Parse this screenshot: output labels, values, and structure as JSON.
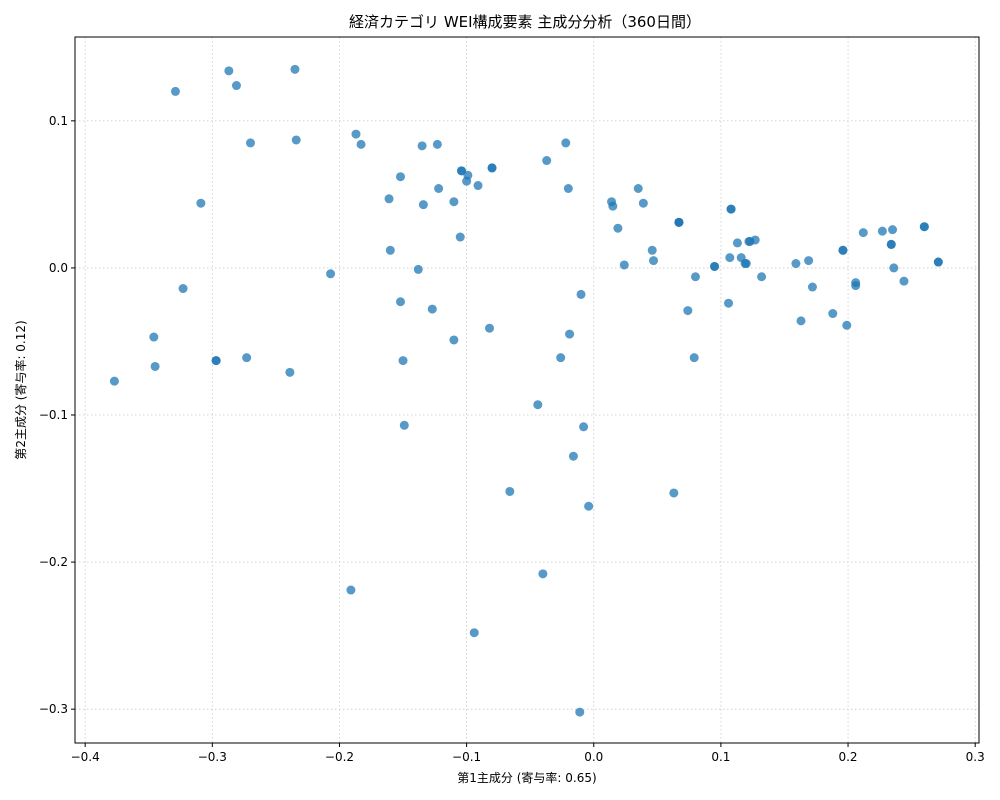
{
  "chart_data": {
    "type": "scatter",
    "title": "経済カテゴリ WEI構成要素 主成分分析（360日間）",
    "xlabel": "第1主成分 (寄与率: 0.65)",
    "ylabel": "第2主成分 (寄与率: 0.12)",
    "xlim": [
      -0.408,
      0.303
    ],
    "ylim": [
      -0.323,
      0.157
    ],
    "xticks": [
      -0.4,
      -0.3,
      -0.2,
      -0.1,
      0.0,
      0.1,
      0.2,
      0.3
    ],
    "xtick_labels": [
      "−0.4",
      "−0.3",
      "−0.2",
      "−0.1",
      "0.0",
      "0.1",
      "0.2",
      "0.3"
    ],
    "yticks": [
      -0.3,
      -0.2,
      -0.1,
      0.0,
      0.1
    ],
    "ytick_labels": [
      "−0.3",
      "−0.2",
      "−0.1",
      "0.0",
      "0.1"
    ],
    "grid": true,
    "point_color": "#1f77b4",
    "points": [
      [
        -0.377,
        -0.077
      ],
      [
        -0.346,
        -0.047
      ],
      [
        -0.345,
        -0.067
      ],
      [
        -0.329,
        0.12
      ],
      [
        -0.323,
        -0.014
      ],
      [
        -0.309,
        0.044
      ],
      [
        -0.297,
        -0.063
      ],
      [
        -0.297,
        -0.063
      ],
      [
        -0.287,
        0.134
      ],
      [
        -0.281,
        0.124
      ],
      [
        -0.273,
        -0.061
      ],
      [
        -0.27,
        0.085
      ],
      [
        -0.239,
        -0.071
      ],
      [
        -0.235,
        0.135
      ],
      [
        -0.234,
        0.087
      ],
      [
        -0.207,
        -0.004
      ],
      [
        -0.191,
        -0.219
      ],
      [
        -0.187,
        0.091
      ],
      [
        -0.183,
        0.084
      ],
      [
        -0.161,
        0.047
      ],
      [
        -0.16,
        0.012
      ],
      [
        -0.152,
        0.062
      ],
      [
        -0.152,
        -0.023
      ],
      [
        -0.15,
        -0.063
      ],
      [
        -0.149,
        -0.107
      ],
      [
        -0.138,
        -0.001
      ],
      [
        -0.135,
        0.083
      ],
      [
        -0.134,
        0.043
      ],
      [
        -0.127,
        -0.028
      ],
      [
        -0.123,
        0.084
      ],
      [
        -0.122,
        0.054
      ],
      [
        -0.11,
        0.045
      ],
      [
        -0.11,
        -0.049
      ],
      [
        -0.105,
        0.021
      ],
      [
        -0.104,
        0.066
      ],
      [
        -0.104,
        0.066
      ],
      [
        -0.1,
        0.059
      ],
      [
        -0.099,
        0.063
      ],
      [
        -0.094,
        -0.248
      ],
      [
        -0.091,
        0.056
      ],
      [
        -0.082,
        -0.041
      ],
      [
        -0.08,
        0.068
      ],
      [
        -0.08,
        0.068
      ],
      [
        -0.066,
        -0.152
      ],
      [
        -0.044,
        -0.093
      ],
      [
        -0.04,
        -0.208
      ],
      [
        -0.037,
        0.073
      ],
      [
        -0.026,
        -0.061
      ],
      [
        -0.022,
        0.085
      ],
      [
        -0.02,
        0.054
      ],
      [
        -0.019,
        -0.045
      ],
      [
        -0.016,
        -0.128
      ],
      [
        -0.011,
        -0.302
      ],
      [
        -0.01,
        -0.018
      ],
      [
        -0.008,
        -0.108
      ],
      [
        -0.004,
        -0.162
      ],
      [
        0.014,
        0.045
      ],
      [
        0.015,
        0.042
      ],
      [
        0.019,
        0.027
      ],
      [
        0.024,
        0.002
      ],
      [
        0.035,
        0.054
      ],
      [
        0.039,
        0.044
      ],
      [
        0.046,
        0.012
      ],
      [
        0.047,
        0.005
      ],
      [
        0.063,
        -0.153
      ],
      [
        0.067,
        0.031
      ],
      [
        0.067,
        0.031
      ],
      [
        0.067,
        0.031
      ],
      [
        0.074,
        -0.029
      ],
      [
        0.079,
        -0.061
      ],
      [
        0.08,
        -0.006
      ],
      [
        0.095,
        0.001
      ],
      [
        0.095,
        0.001
      ],
      [
        0.106,
        -0.024
      ],
      [
        0.107,
        0.007
      ],
      [
        0.108,
        0.04
      ],
      [
        0.108,
        0.04
      ],
      [
        0.113,
        0.017
      ],
      [
        0.116,
        0.007
      ],
      [
        0.119,
        0.003
      ],
      [
        0.12,
        0.003
      ],
      [
        0.122,
        0.018
      ],
      [
        0.123,
        0.018
      ],
      [
        0.127,
        0.019
      ],
      [
        0.132,
        -0.006
      ],
      [
        0.159,
        0.003
      ],
      [
        0.163,
        -0.036
      ],
      [
        0.169,
        0.005
      ],
      [
        0.172,
        -0.013
      ],
      [
        0.188,
        -0.031
      ],
      [
        0.196,
        0.012
      ],
      [
        0.196,
        0.012
      ],
      [
        0.199,
        -0.039
      ],
      [
        0.206,
        -0.01
      ],
      [
        0.206,
        -0.012
      ],
      [
        0.212,
        0.024
      ],
      [
        0.227,
        0.025
      ],
      [
        0.234,
        0.016
      ],
      [
        0.234,
        0.016
      ],
      [
        0.235,
        0.026
      ],
      [
        0.236,
        0.0
      ],
      [
        0.244,
        -0.009
      ],
      [
        0.26,
        0.028
      ],
      [
        0.26,
        0.028
      ],
      [
        0.271,
        0.004
      ],
      [
        0.271,
        0.004
      ]
    ]
  }
}
